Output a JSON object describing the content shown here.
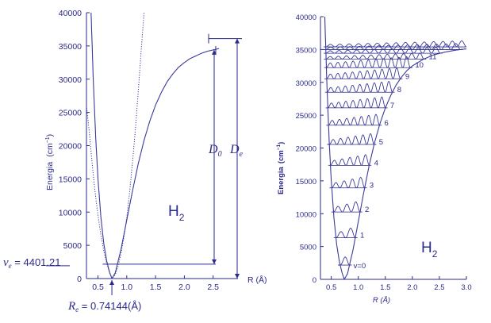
{
  "chart_data": [
    {
      "type": "line",
      "title": "",
      "ylabel_word": "Energia",
      "ylabel_unit": "(cm",
      "ylabel_exp": "−1",
      "ylabel_close": ")",
      "xlabel": "R (Å)",
      "xlim": [
        0.3,
        3.0
      ],
      "ylim": [
        0,
        40000
      ],
      "yticks": [
        "0",
        "5000",
        "10000",
        "15000",
        "20000",
        "25000",
        "30000",
        "35000",
        "40000"
      ],
      "ytick_values": [
        0,
        5000,
        10000,
        15000,
        20000,
        25000,
        30000,
        35000,
        40000
      ],
      "xticks": [
        "0.5",
        "1.0",
        "1.5",
        "2.0",
        "2.5"
      ],
      "xtick_values": [
        0.5,
        1.0,
        1.5,
        2.0,
        2.5
      ],
      "molecule_main": "H",
      "molecule_sub": "2",
      "series": [
        {
          "style": "solid",
          "x": [
            0.38,
            0.42,
            0.46,
            0.5,
            0.55,
            0.6,
            0.65,
            0.7,
            0.74144,
            0.8,
            0.9,
            1.0,
            1.1,
            1.2,
            1.3,
            1.4,
            1.5,
            1.6,
            1.7,
            1.8,
            1.9,
            2.0,
            2.1,
            2.2,
            2.3,
            2.4,
            2.5,
            2.6
          ],
          "y": [
            40000,
            29500,
            21300,
            15000,
            9300,
            5300,
            2700,
            980,
            0,
            860,
            4400,
            8800,
            13200,
            17300,
            20800,
            23700,
            26100,
            28000,
            29600,
            30800,
            31800,
            32500,
            33100,
            33500,
            33900,
            34200,
            34400,
            34600
          ]
        },
        {
          "style": "dotted",
          "x": [
            0.3,
            0.35,
            0.4,
            0.45,
            0.5,
            0.55,
            0.6,
            0.65,
            0.7,
            0.74144,
            0.8,
            0.85,
            0.9,
            0.95,
            1.0,
            1.05,
            1.1,
            1.15,
            1.2,
            1.25,
            1.3
          ],
          "y": [
            26000,
            22000,
            17200,
            13000,
            9500,
            6600,
            4200,
            2300,
            900,
            0,
            580,
            1850,
            3800,
            6200,
            9200,
            13000,
            17500,
            22500,
            28200,
            34300,
            40000
          ]
        }
      ],
      "annotations": {
        "d0_symbol": "D",
        "d0_sub": "0",
        "de_symbol": "D",
        "de_sub": "e",
        "nu_symbol": "ν",
        "nu_sub": "e",
        "nu_text": " = 4401.21",
        "re_symbol": "R",
        "re_sub": "e",
        "re_text": " = 0.74144",
        "re_unit": "(Å)"
      },
      "levels": {
        "dissociation_energy": 36100,
        "d0_energy": 34400,
        "zero_point": 2170,
        "r_equilibrium": 0.74144
      }
    },
    {
      "type": "line",
      "title": "",
      "ylabel_word": "Energia",
      "ylabel_unit": "(cm",
      "ylabel_exp": "−1",
      "ylabel_close": ")",
      "xlabel": "R (Å)",
      "xlim": [
        0.3,
        3.0
      ],
      "ylim": [
        0,
        40000
      ],
      "yticks": [
        "0",
        "5000",
        "10000",
        "15000",
        "20000",
        "25000",
        "30000",
        "35000",
        "40000"
      ],
      "ytick_values": [
        0,
        5000,
        10000,
        15000,
        20000,
        25000,
        30000,
        35000,
        40000
      ],
      "xticks": [
        "0.5",
        "1.0",
        "1.5",
        "2.0",
        "2.5",
        "3.0"
      ],
      "xtick_values": [
        0.5,
        1.0,
        1.5,
        2.0,
        2.5,
        3.0
      ],
      "molecule_main": "H",
      "molecule_sub": "2",
      "vibrational_levels": [
        {
          "v": "v=0",
          "energy": 2170
        },
        {
          "v": "1",
          "energy": 6330
        },
        {
          "v": "2",
          "energy": 10260
        },
        {
          "v": "3",
          "energy": 13930
        },
        {
          "v": "4",
          "energy": 17360
        },
        {
          "v": "5",
          "energy": 20540
        },
        {
          "v": "6",
          "energy": 23470
        },
        {
          "v": "7",
          "energy": 26120
        },
        {
          "v": "8",
          "energy": 28490
        },
        {
          "v": "9",
          "energy": 30540
        },
        {
          "v": "10",
          "energy": 32240
        },
        {
          "v": "11",
          "energy": 33550
        },
        {
          "v": "12",
          "energy": 34430
        },
        {
          "v": "13",
          "energy": 34990
        },
        {
          "v": "14",
          "energy": 35400
        }
      ],
      "potential": {
        "x": [
          0.38,
          0.42,
          0.46,
          0.5,
          0.55,
          0.6,
          0.65,
          0.7,
          0.74144,
          0.8,
          0.9,
          1.0,
          1.1,
          1.2,
          1.3,
          1.4,
          1.5,
          1.6,
          1.7,
          1.8,
          1.9,
          2.0,
          2.2,
          2.4,
          2.6,
          2.8,
          3.0
        ],
        "y": [
          40000,
          29500,
          21300,
          15000,
          9300,
          5300,
          2700,
          980,
          0,
          860,
          4400,
          8800,
          13200,
          17300,
          20800,
          23700,
          26100,
          28000,
          29600,
          30800,
          31800,
          32500,
          33500,
          34200,
          34600,
          34900,
          35100
        ]
      }
    }
  ],
  "colors": {
    "ink": "#2a2a8a",
    "curve": "#3a3a9a"
  }
}
